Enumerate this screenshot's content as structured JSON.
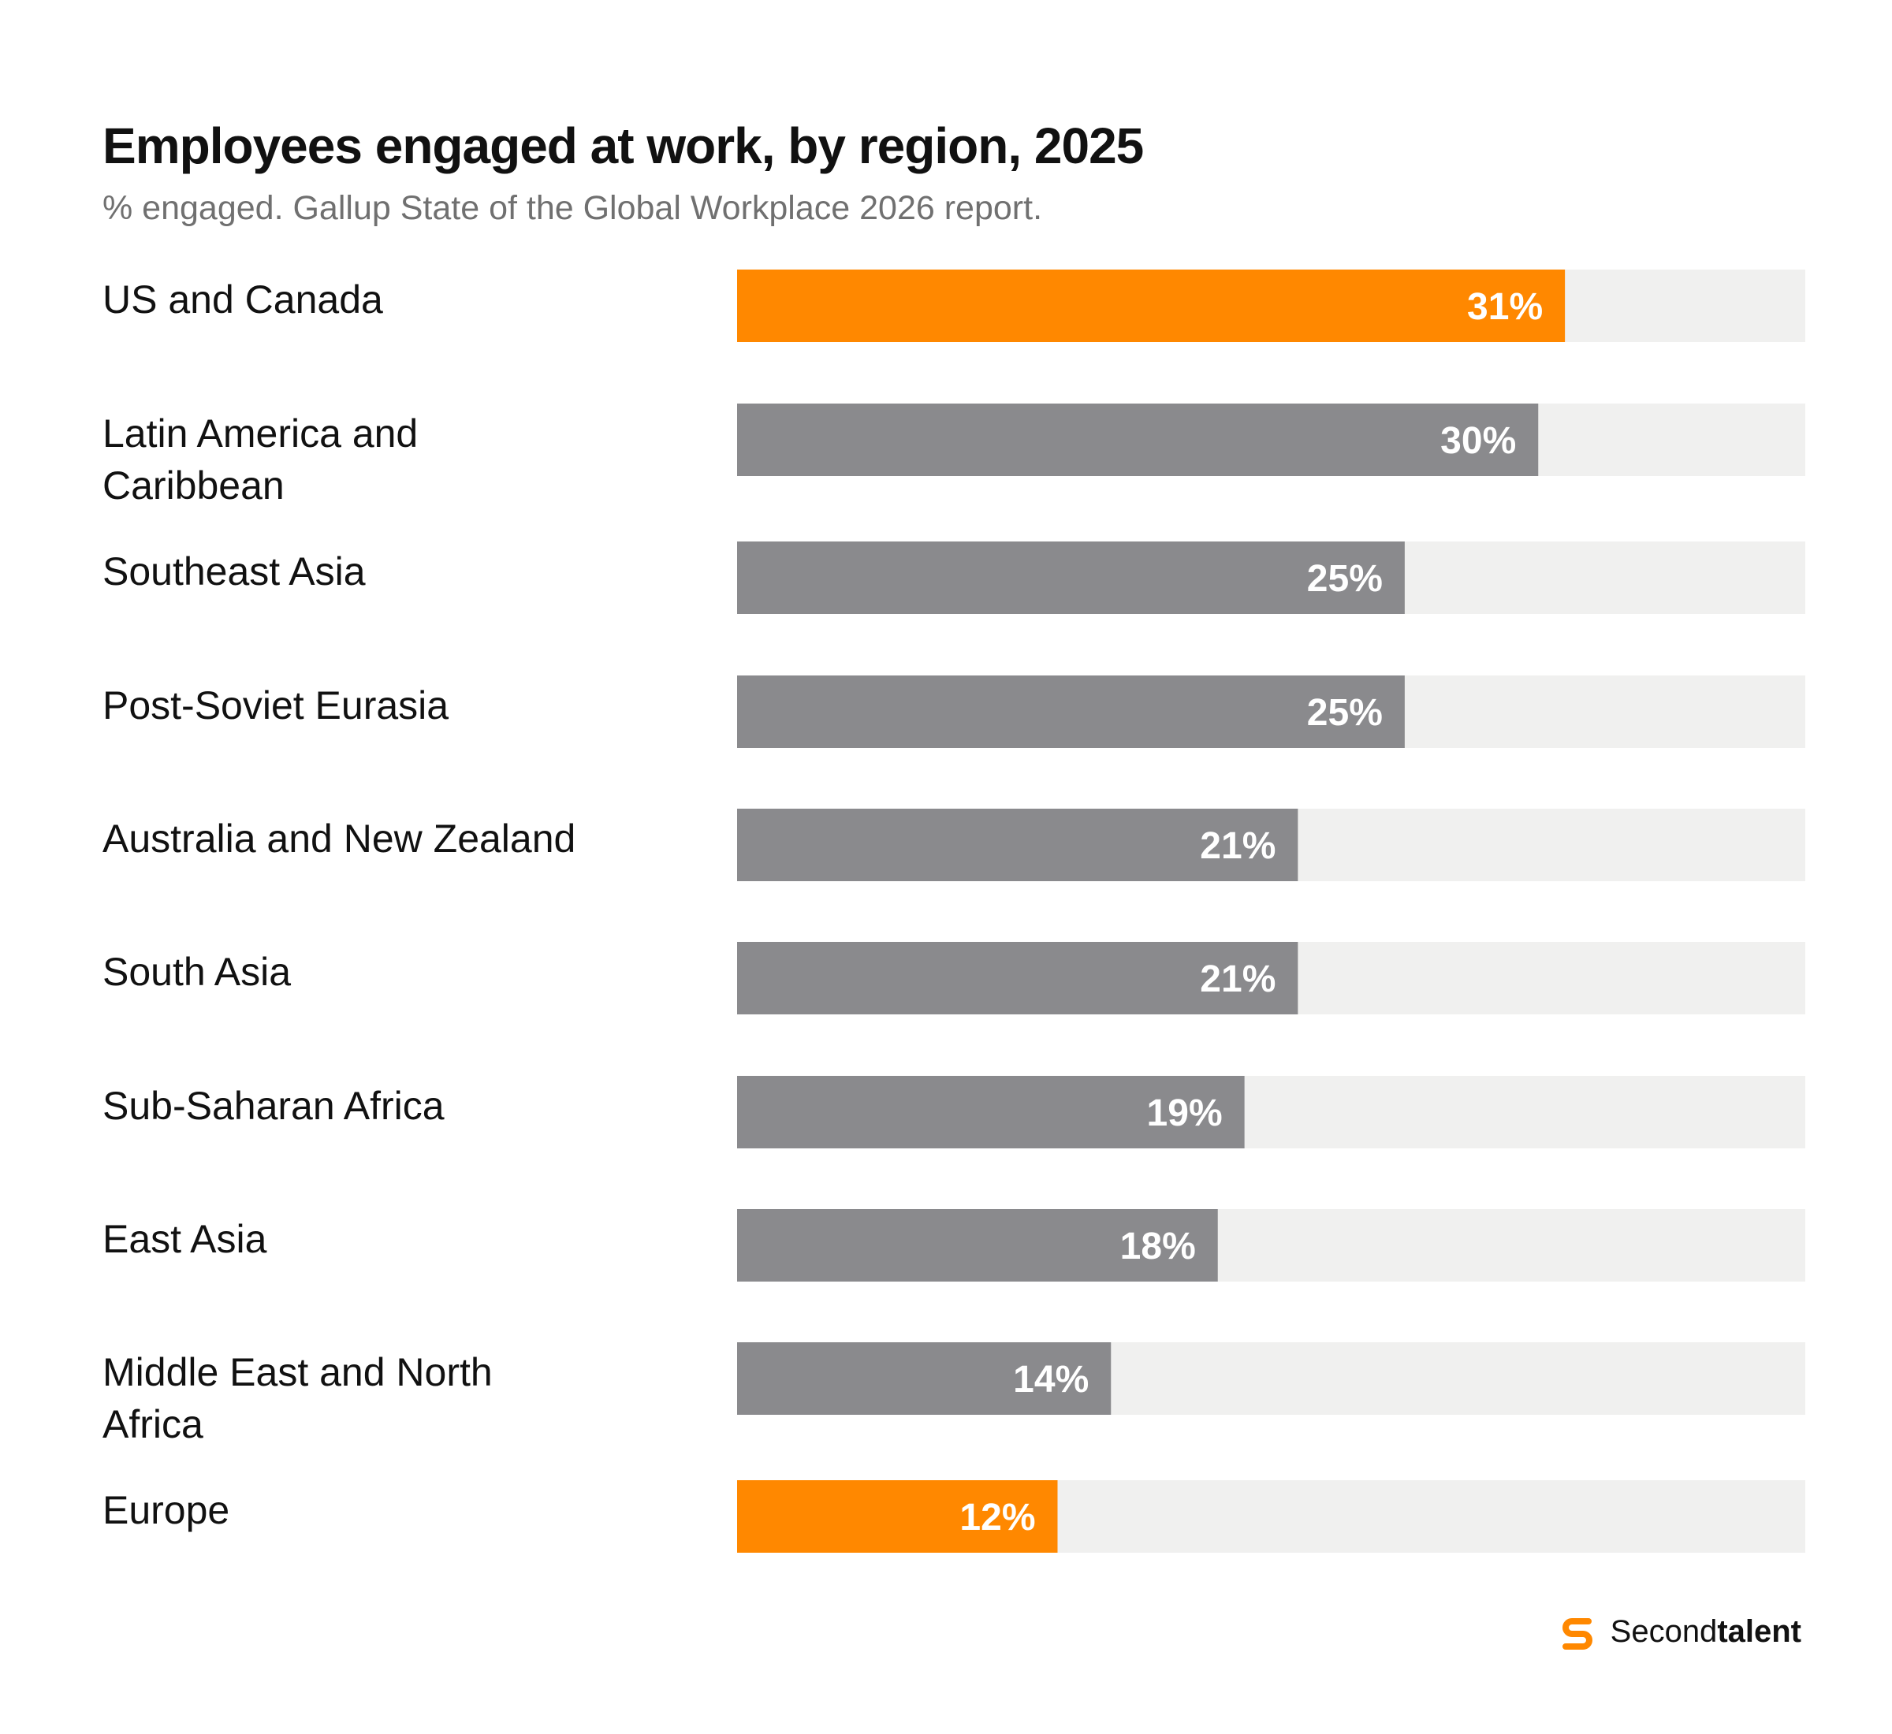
{
  "chart_data": {
    "type": "bar",
    "orientation": "horizontal",
    "title": "Employees engaged at work, by region, 2025",
    "subtitle": "% engaged. Gallup State of the Global Workplace 2026 report.",
    "categories": [
      [
        "US and Canada"
      ],
      [
        "Latin America and",
        "Caribbean"
      ],
      [
        "Southeast Asia"
      ],
      [
        "Post-Soviet Eurasia"
      ],
      [
        "Australia and New Zealand"
      ],
      [
        "South Asia"
      ],
      [
        "Sub-Saharan Africa"
      ],
      [
        "East Asia"
      ],
      [
        "Middle East and North",
        "Africa"
      ],
      [
        "Europe"
      ]
    ],
    "values": [
      31,
      30,
      25,
      25,
      21,
      21,
      19,
      18,
      14,
      12
    ],
    "value_labels": [
      "31%",
      "30%",
      "25%",
      "25%",
      "21%",
      "21%",
      "19%",
      "18%",
      "14%",
      "12%"
    ],
    "highlighted": [
      true,
      false,
      false,
      false,
      false,
      false,
      false,
      false,
      false,
      true
    ],
    "xlim": [
      0,
      40
    ],
    "grid": false,
    "legend": "none",
    "colors": {
      "highlight": "#FF8800",
      "default": "#8A8A8D",
      "track": "#F0F0EF"
    }
  },
  "brand": {
    "name_regular": "Second",
    "name_bold": "talent",
    "icon": "secondtalent-logo-icon",
    "color": "#FF8800"
  }
}
